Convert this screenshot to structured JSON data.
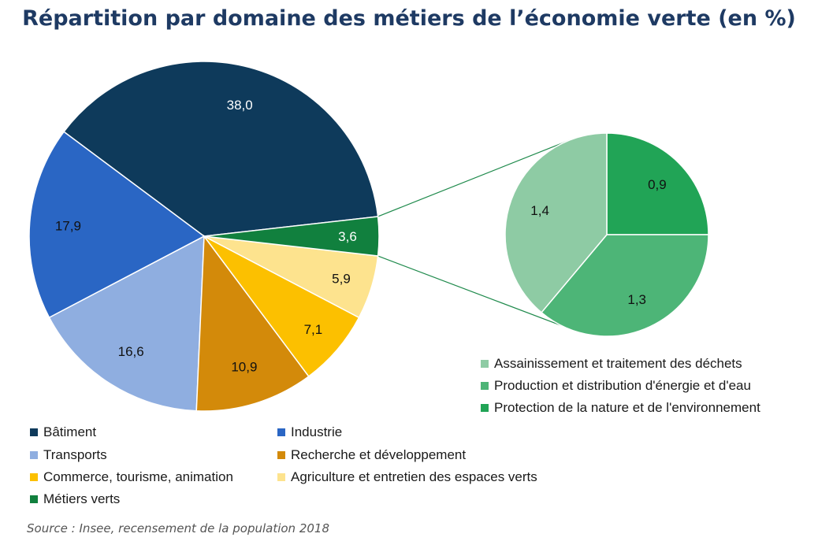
{
  "chart_data": {
    "type": "pie",
    "title": "Répartition par domaine des métiers de l’économie verte (en %)",
    "main_pie": {
      "slices": [
        {
          "name": "Bâtiment",
          "value": 38.0,
          "label": "38,0",
          "color": "#0e3a5b",
          "label_color": "#ffffff"
        },
        {
          "name": "Industrie",
          "value": 17.9,
          "label": "17,9",
          "color": "#2a66c4",
          "label_color": "#111111"
        },
        {
          "name": "Transports",
          "value": 16.6,
          "label": "16,6",
          "color": "#8faee0",
          "label_color": "#111111"
        },
        {
          "name": "Recherche et développement",
          "value": 10.9,
          "label": "10,9",
          "color": "#d38a0a",
          "label_color": "#111111"
        },
        {
          "name": "Commerce, tourisme, animation",
          "value": 7.1,
          "label": "7,1",
          "color": "#fcc000",
          "label_color": "#111111"
        },
        {
          "name": "Agriculture et entretien des espaces verts",
          "value": 5.9,
          "label": "5,9",
          "color": "#fde38e",
          "label_color": "#111111"
        },
        {
          "name": "Métiers verts",
          "value": 3.6,
          "label": "3,6",
          "color": "#11803e",
          "label_color": "#ffffff"
        }
      ]
    },
    "secondary_pie": {
      "parent": "Métiers verts",
      "slices": [
        {
          "name": "Protection de la nature et de l'environnement",
          "value": 0.9,
          "label": "0,9",
          "color": "#21a456"
        },
        {
          "name": "Production et distribution d'énergie et d'eau",
          "value": 1.3,
          "label": "1,3",
          "color": "#4db577"
        },
        {
          "name": "Assainissement et traitement des déchets",
          "value": 1.4,
          "label": "1,4",
          "color": "#8ecba4"
        }
      ]
    },
    "legend_main": [
      "Bâtiment",
      "Industrie",
      "Transports",
      "Recherche et développement",
      "Commerce, tourisme, animation",
      "Agriculture et entretien des espaces verts",
      "Métiers verts"
    ],
    "legend_secondary": [
      "Assainissement et traitement des déchets",
      "Production et distribution d'énergie et d'eau",
      "Protection de la nature et de l'environnement"
    ],
    "legend_placement": "bottom"
  },
  "source": "Source : Insee, recensement de la population 2018"
}
